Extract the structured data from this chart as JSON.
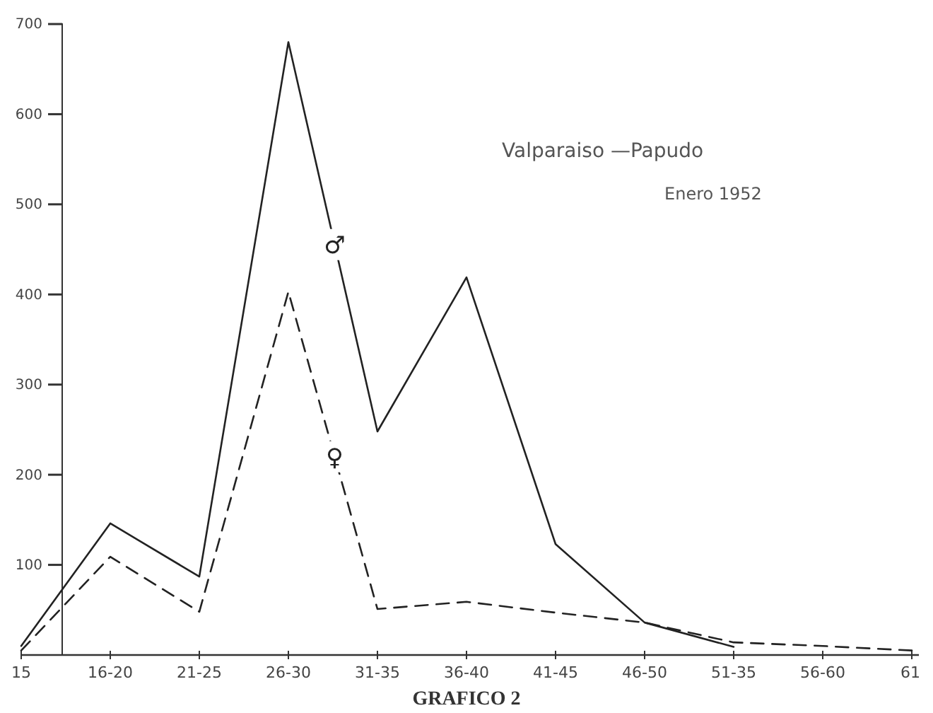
{
  "chart_data": {
    "type": "line",
    "title": "GRAFICO 2",
    "annotations": [
      "Valparaiso —Papudo",
      "Enero 1952"
    ],
    "categories": [
      "15",
      "16-20",
      "21-25",
      "26-30",
      "31-35",
      "36-40",
      "41-45",
      "46-50",
      "51-35",
      "56-60",
      "61"
    ],
    "ylim": [
      0,
      700
    ],
    "yticks": [
      100,
      200,
      300,
      400,
      500,
      600,
      700
    ],
    "grid": false,
    "marker": "none",
    "series": [
      {
        "name": "♂",
        "color": "#222222",
        "line_style": "solid",
        "values": [
          10,
          146,
          87,
          680,
          248,
          419,
          123,
          36,
          9,
          null,
          null
        ]
      },
      {
        "name": "♀",
        "color": "#222222",
        "line_style": "dashed",
        "values": [
          5,
          109,
          48,
          403,
          51,
          59,
          47,
          36,
          14,
          10,
          5
        ]
      }
    ]
  }
}
